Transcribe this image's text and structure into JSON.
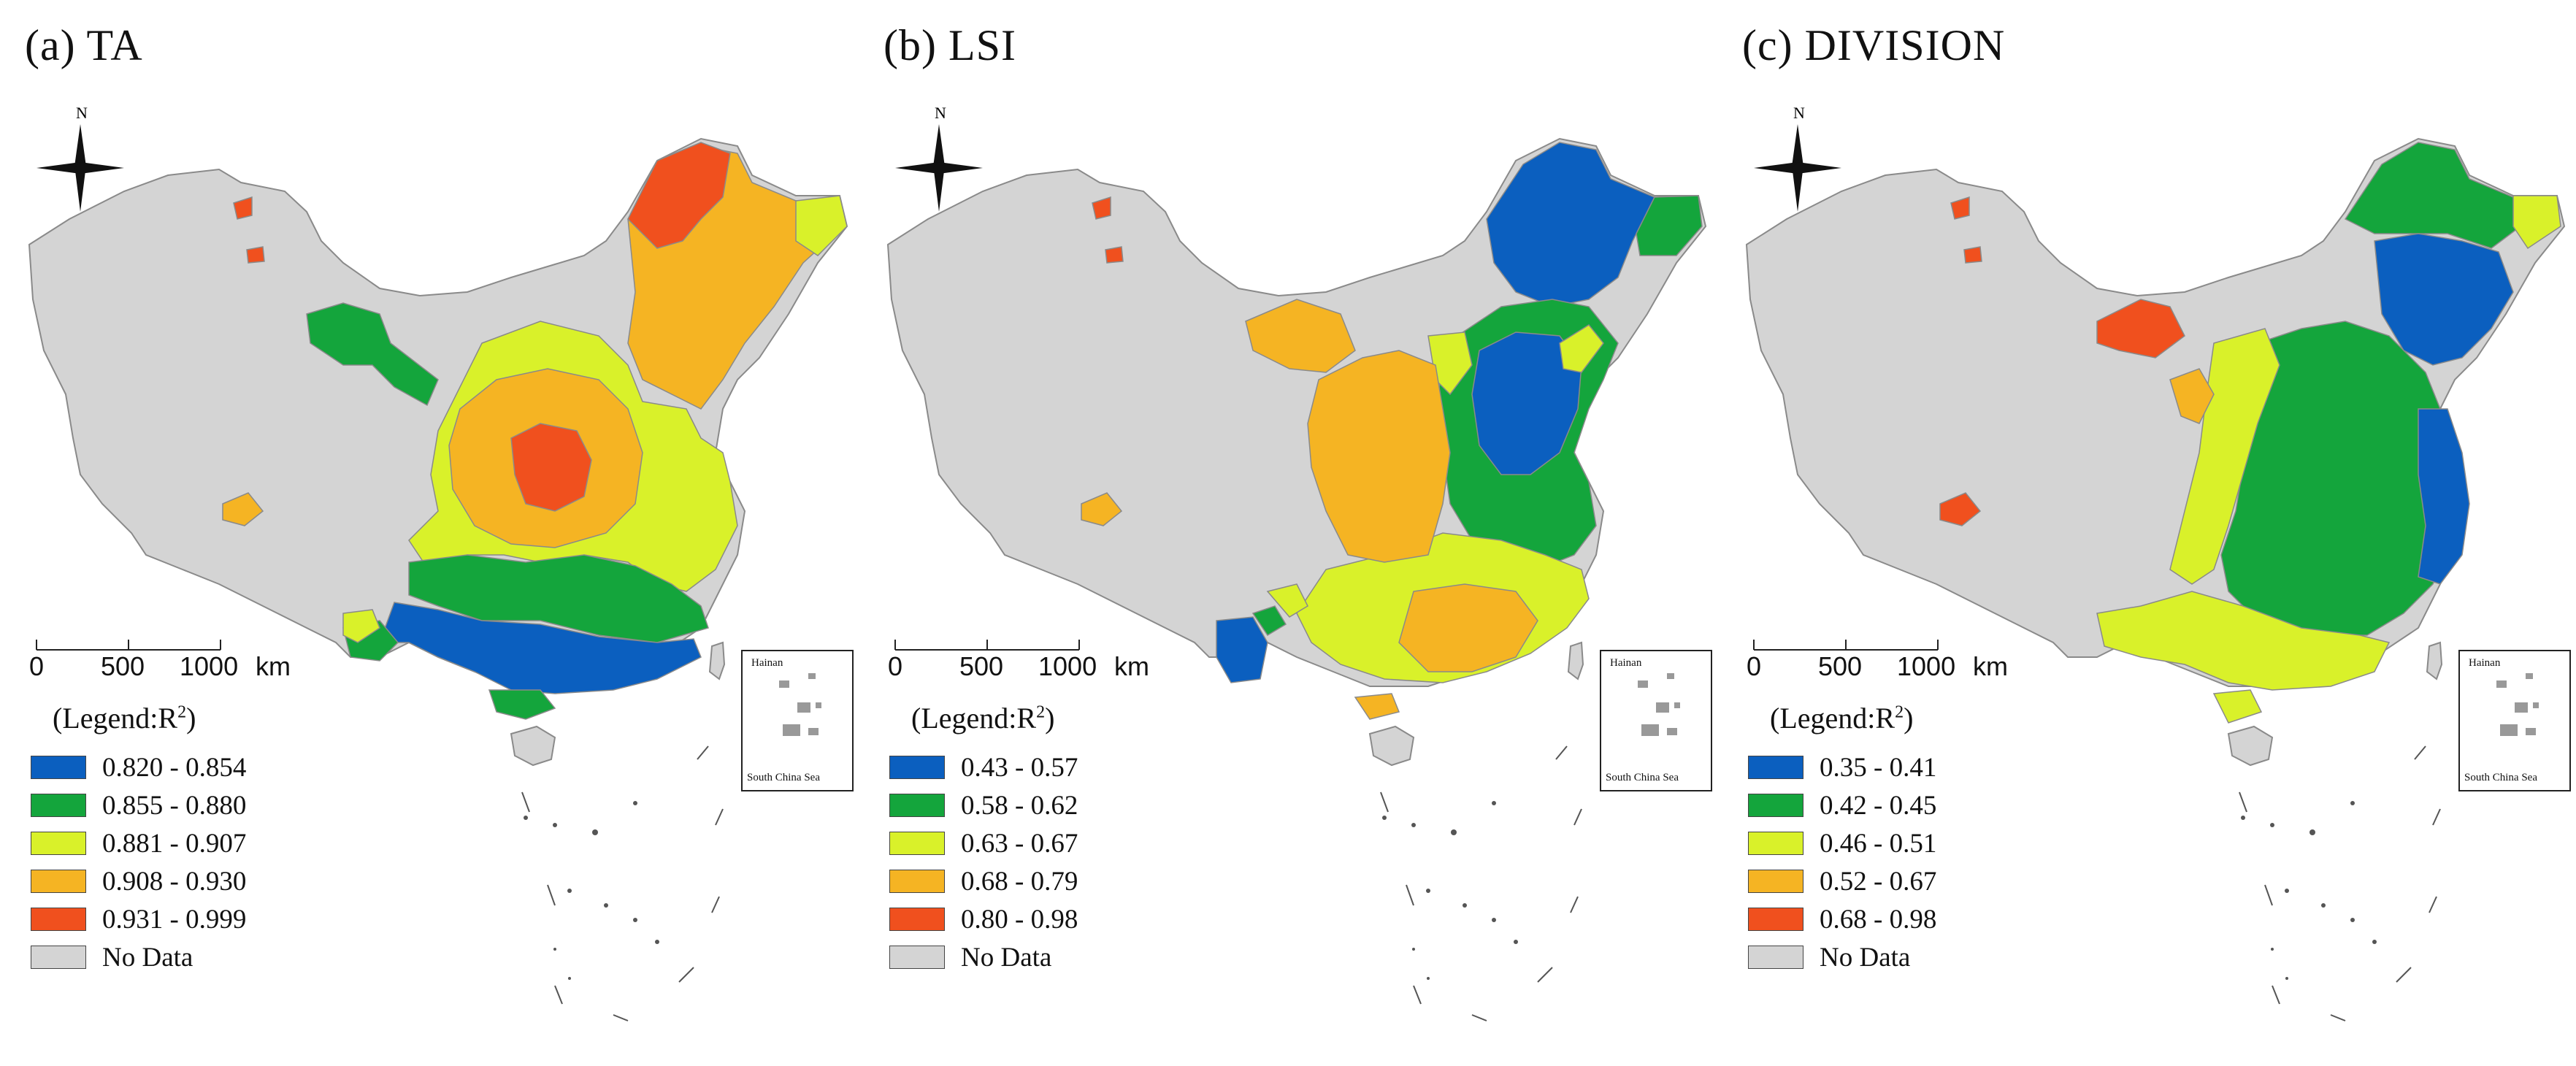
{
  "colors": {
    "blue": "#0b5fbf",
    "green": "#14a53c",
    "yellow": "#d9f12a",
    "orange": "#f5b423",
    "red": "#f0501e",
    "nodata": "#d4d4d4",
    "border": "#8a8a8a"
  },
  "compass_label": "N",
  "scale": {
    "ticks": [
      "0",
      "500",
      "1000"
    ],
    "unit": "km"
  },
  "inset": {
    "top_label": "Hainan",
    "bottom_label": "South China Sea"
  },
  "legend_prefix": "(Legend:R",
  "legend_exponent": "2",
  "legend_suffix": ")",
  "panels": [
    {
      "title": "(a) TA",
      "classes": [
        {
          "label": "0.820 - 0.854",
          "color": "#0b5fbf"
        },
        {
          "label": "0.855 - 0.880",
          "color": "#14a53c"
        },
        {
          "label": "0.881 - 0.907",
          "color": "#d9f12a"
        },
        {
          "label": "0.908 - 0.930",
          "color": "#f5b423"
        },
        {
          "label": "0.931 - 0.999",
          "color": "#f0501e"
        },
        {
          "label": "No Data",
          "color": "#d4d4d4"
        }
      ]
    },
    {
      "title": "(b) LSI",
      "classes": [
        {
          "label": "0.43 - 0.57",
          "color": "#0b5fbf"
        },
        {
          "label": "0.58 - 0.62",
          "color": "#14a53c"
        },
        {
          "label": "0.63 - 0.67",
          "color": "#d9f12a"
        },
        {
          "label": "0.68 - 0.79",
          "color": "#f5b423"
        },
        {
          "label": "0.80 - 0.98",
          "color": "#f0501e"
        },
        {
          "label": "No Data",
          "color": "#d4d4d4"
        }
      ]
    },
    {
      "title": "(c) DIVISION",
      "classes": [
        {
          "label": "0.35 - 0.41",
          "color": "#0b5fbf"
        },
        {
          "label": "0.42 - 0.45",
          "color": "#14a53c"
        },
        {
          "label": "0.46 - 0.51",
          "color": "#d9f12a"
        },
        {
          "label": "0.52 - 0.67",
          "color": "#f5b423"
        },
        {
          "label": "0.68 - 0.98",
          "color": "#f0501e"
        },
        {
          "label": "No Data",
          "color": "#d4d4d4"
        }
      ]
    }
  ]
}
